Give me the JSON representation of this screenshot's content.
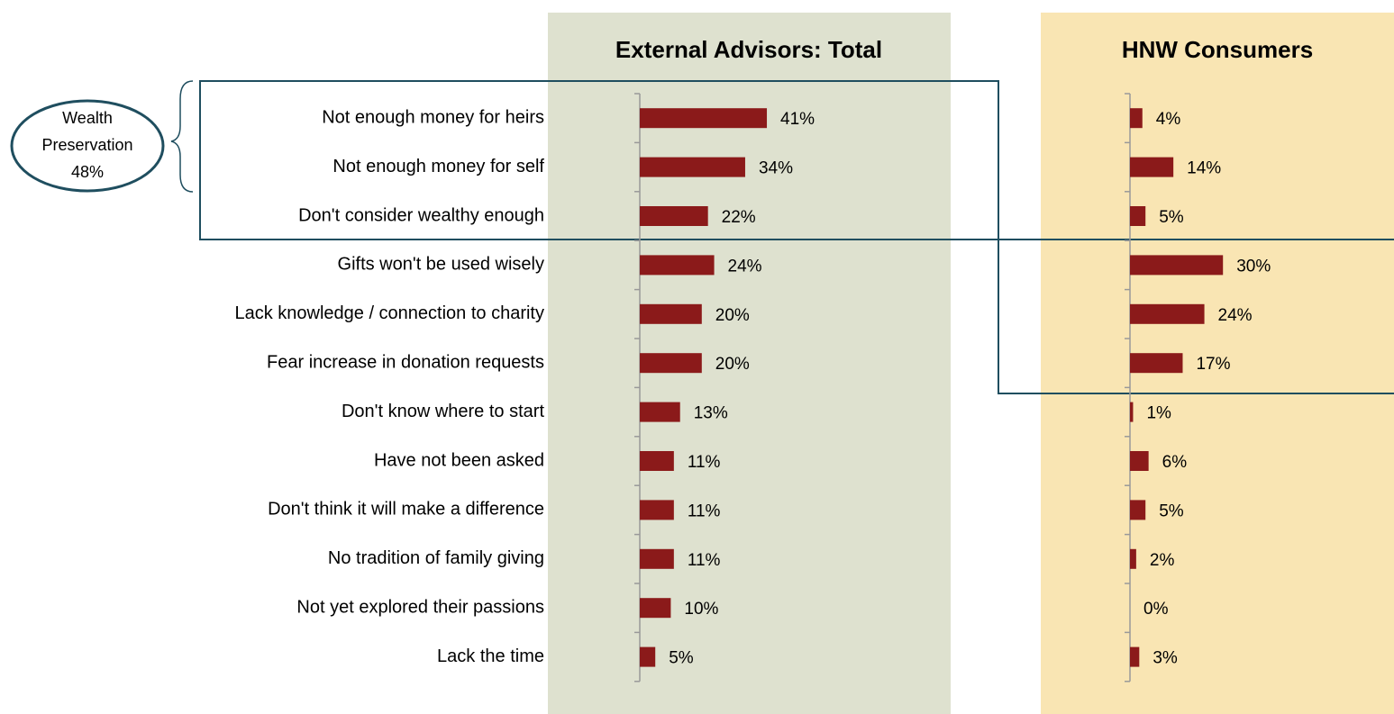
{
  "chart_data": {
    "type": "bar",
    "orientation": "horizontal",
    "categories": [
      "Not enough money for heirs",
      "Not enough money for self",
      "Don't consider wealthy enough",
      "Gifts won't be used wisely",
      "Lack knowledge / connection to charity",
      "Fear increase in donation requests",
      "Don't know where to start",
      "Have not been asked",
      "Don't think it will make a difference",
      "No tradition of family giving",
      "Not yet explored their passions",
      "Lack the time"
    ],
    "series": [
      {
        "name": "External Advisors: Total",
        "color": "#8b1a1a",
        "background": "#dee1cf",
        "values": [
          41,
          34,
          22,
          24,
          20,
          20,
          13,
          11,
          11,
          11,
          10,
          5
        ],
        "value_labels": [
          "41%",
          "34%",
          "22%",
          "24%",
          "20%",
          "20%",
          "13%",
          "11%",
          "11%",
          "11%",
          "10%",
          "5%"
        ]
      },
      {
        "name": "HNW Consumers",
        "color": "#8b1a1a",
        "background": "#f9e5b3",
        "values": [
          4,
          14,
          5,
          30,
          24,
          17,
          1,
          6,
          5,
          2,
          0,
          3
        ],
        "value_labels": [
          "4%",
          "14%",
          "5%",
          "30%",
          "24%",
          "17%",
          "1%",
          "6%",
          "5%",
          "2%",
          "0%",
          "3%"
        ]
      }
    ],
    "xlim": [
      0,
      100
    ],
    "annotation": {
      "lines": [
        "Wealth",
        "Preservation",
        "48%"
      ]
    }
  }
}
